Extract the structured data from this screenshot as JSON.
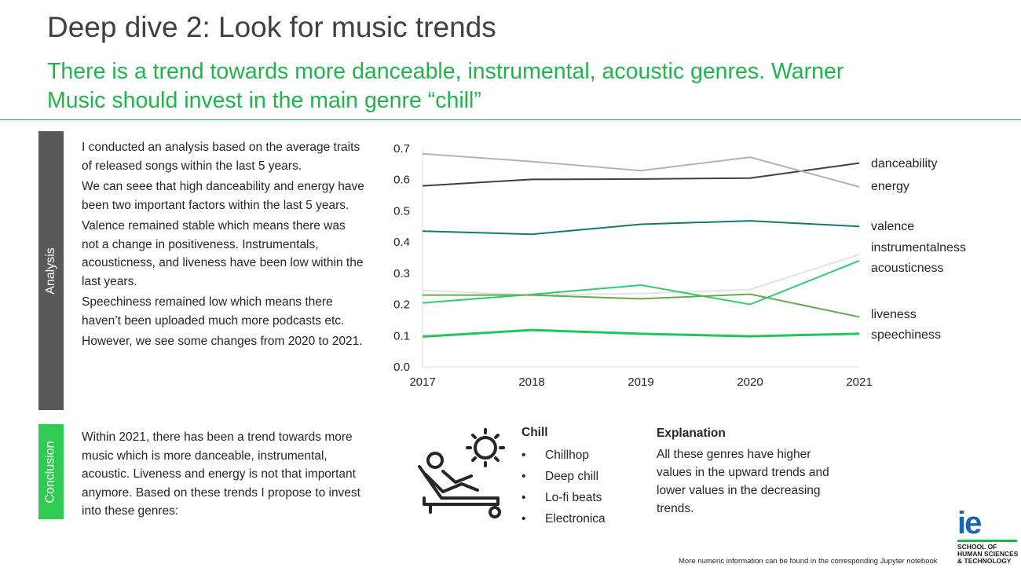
{
  "slide": {
    "title": "Deep dive 2: Look for music trends",
    "subtitle": "There is a trend towards more danceable, instrumental, acoustic genres. Warner Music should invest in the main genre “chill”",
    "accent_color": "#1fb44c"
  },
  "analysis": {
    "tab_label": "Analysis",
    "paragraphs": [
      "I conducted an analysis based on the average traits of released songs within the last 5 years.",
      "We can seee that high danceability and energy have been two important factors within the last 5 years.",
      "Valence remained stable which means there was not a change in positiveness. Instrumentals, acousticness, and liveness have been low within the last years.",
      "Speechiness remained low which means there haven’t been uploaded much more podcasts etc.",
      "However, we see some changes from 2020 to 2021."
    ]
  },
  "conclusion": {
    "tab_label": "Conclusion",
    "text": "Within 2021, there has been a trend towards more music which is more danceable, instrumental, acoustic. Liveness and energy is not that important anymore. Based on these trends I propose to invest into these genres:"
  },
  "chill": {
    "icon": "sun-lounger-icon",
    "title": "Chill",
    "genres": [
      "Chillhop",
      "Deep chill",
      "Lo-fi beats",
      "Electronica"
    ]
  },
  "explanation": {
    "title": "Explanation",
    "text": "All these genres have higher values in the upward trends and lower values in the decreasing trends."
  },
  "footnote": "More numeric information can be found in the corresponding Jupyter notebook",
  "logo": {
    "mark": "ie",
    "lines": [
      "SCHOOL OF",
      "HUMAN SCIENCES",
      "& TECHNOLOGY"
    ],
    "color": "#1a64b4"
  },
  "chart_data": {
    "type": "line",
    "x": [
      2017,
      2018,
      2019,
      2020,
      2021
    ],
    "ylim": [
      0,
      0.7
    ],
    "yticks": [
      "0.0",
      "0.1",
      "0.2",
      "0.3",
      "0.4",
      "0.5",
      "0.6",
      "0.7"
    ],
    "grid": false,
    "legend": "inline-right",
    "series": [
      {
        "name": "danceability",
        "color": "#404040",
        "values": [
          0.58,
          0.601,
          0.602,
          0.605,
          0.653
        ]
      },
      {
        "name": "energy",
        "color": "#b3b3b3",
        "values": [
          0.683,
          0.658,
          0.629,
          0.672,
          0.577
        ]
      },
      {
        "name": "valence",
        "color": "#127a6e",
        "values": [
          0.435,
          0.425,
          0.457,
          0.468,
          0.45
        ]
      },
      {
        "name": "instrumentalness",
        "color": "#e3e3e3",
        "values": [
          0.245,
          0.23,
          0.235,
          0.248,
          0.36
        ]
      },
      {
        "name": "acousticness",
        "color": "#2ecc71",
        "values": [
          0.205,
          0.232,
          0.262,
          0.2,
          0.34
        ]
      },
      {
        "name": "liveness",
        "color": "#6aa84f",
        "values": [
          0.23,
          0.23,
          0.218,
          0.233,
          0.16
        ]
      },
      {
        "name": "speechiness",
        "color": "#22c55e",
        "values": [
          0.097,
          0.118,
          0.106,
          0.098,
          0.106
        ]
      }
    ]
  }
}
